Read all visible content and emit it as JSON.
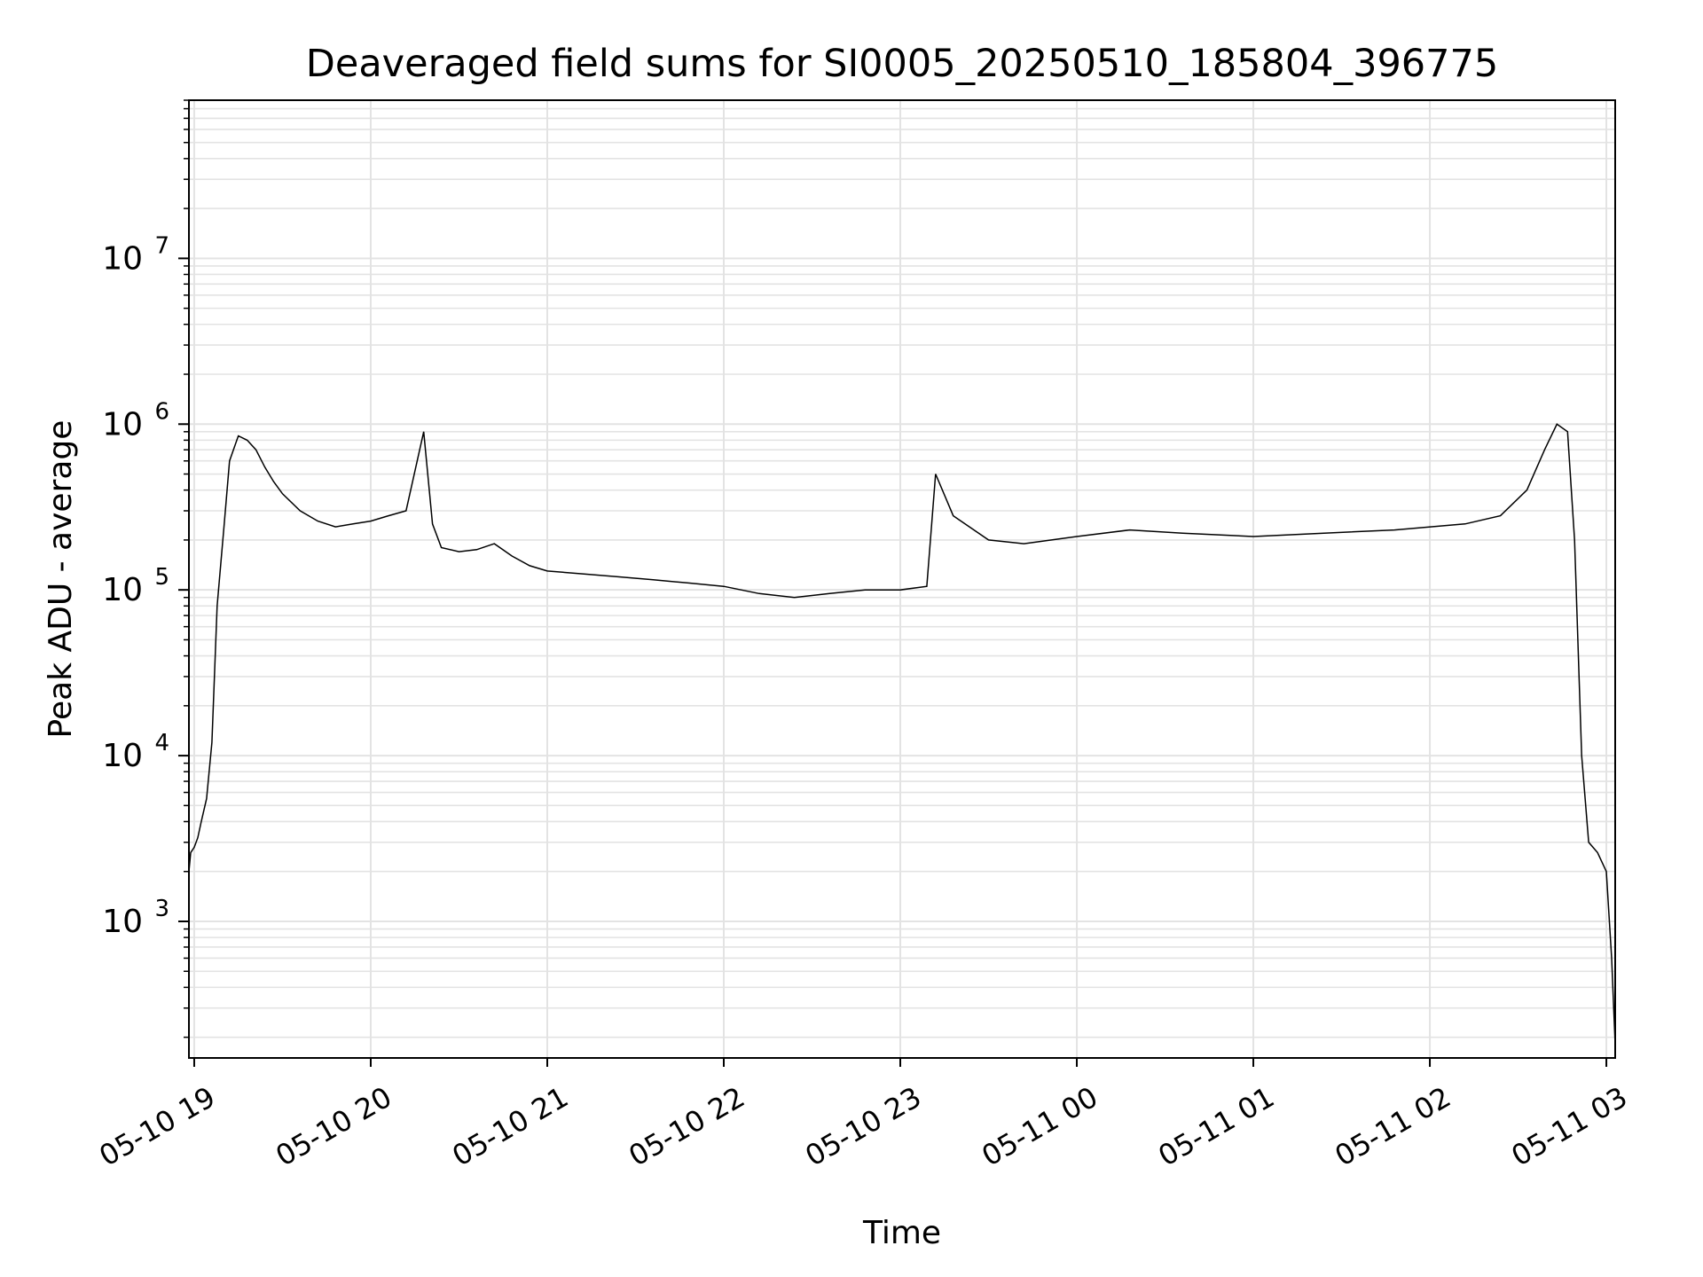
{
  "chart_data": {
    "type": "line",
    "title": "Deaveraged field sums for SI0005_20250510_185804_396775",
    "xlabel": "Time",
    "ylabel": "Peak ADU - average",
    "x_ticks": [
      "05-10 19",
      "05-10 20",
      "05-10 21",
      "05-10 22",
      "05-10 23",
      "05-11 00",
      "05-11 01",
      "05-11 02",
      "05-11 03"
    ],
    "y_ticks": [
      {
        "base": "10",
        "exp": "3",
        "value": 1000
      },
      {
        "base": "10",
        "exp": "4",
        "value": 10000
      },
      {
        "base": "10",
        "exp": "5",
        "value": 100000
      },
      {
        "base": "10",
        "exp": "6",
        "value": 1000000
      },
      {
        "base": "10",
        "exp": "7",
        "value": 10000000
      }
    ],
    "y_scale": "log",
    "ylim": [
      150,
      90000000
    ],
    "xlim_hours": [
      18.97,
      27.05
    ],
    "grid": true,
    "line_color": "#000000",
    "series": [
      {
        "values": [
          [
            18.97,
            2000
          ],
          [
            18.98,
            2600
          ],
          [
            19.0,
            2800
          ],
          [
            19.02,
            3200
          ],
          [
            19.04,
            4000
          ],
          [
            19.07,
            5500
          ],
          [
            19.1,
            12000
          ],
          [
            19.13,
            80000
          ],
          [
            19.17,
            250000
          ],
          [
            19.2,
            600000
          ],
          [
            19.25,
            850000
          ],
          [
            19.3,
            800000
          ],
          [
            19.35,
            700000
          ],
          [
            19.4,
            550000
          ],
          [
            19.45,
            450000
          ],
          [
            19.5,
            380000
          ],
          [
            19.6,
            300000
          ],
          [
            19.7,
            260000
          ],
          [
            19.8,
            240000
          ],
          [
            19.9,
            250000
          ],
          [
            20.0,
            260000
          ],
          [
            20.1,
            280000
          ],
          [
            20.2,
            300000
          ],
          [
            20.3,
            900000
          ],
          [
            20.35,
            250000
          ],
          [
            20.4,
            180000
          ],
          [
            20.5,
            170000
          ],
          [
            20.6,
            175000
          ],
          [
            20.7,
            190000
          ],
          [
            20.8,
            160000
          ],
          [
            20.9,
            140000
          ],
          [
            21.0,
            130000
          ],
          [
            21.2,
            125000
          ],
          [
            21.4,
            120000
          ],
          [
            21.6,
            115000
          ],
          [
            21.8,
            110000
          ],
          [
            22.0,
            105000
          ],
          [
            22.2,
            95000
          ],
          [
            22.4,
            90000
          ],
          [
            22.6,
            95000
          ],
          [
            22.8,
            100000
          ],
          [
            23.0,
            100000
          ],
          [
            23.15,
            105000
          ],
          [
            23.2,
            500000
          ],
          [
            23.3,
            280000
          ],
          [
            23.5,
            200000
          ],
          [
            23.7,
            190000
          ],
          [
            24.0,
            210000
          ],
          [
            24.3,
            230000
          ],
          [
            24.6,
            220000
          ],
          [
            25.0,
            210000
          ],
          [
            25.4,
            220000
          ],
          [
            25.8,
            230000
          ],
          [
            26.2,
            250000
          ],
          [
            26.4,
            280000
          ],
          [
            26.55,
            400000
          ],
          [
            26.65,
            700000
          ],
          [
            26.72,
            1000000
          ],
          [
            26.78,
            900000
          ],
          [
            26.82,
            200000
          ],
          [
            26.86,
            10000
          ],
          [
            26.9,
            3000
          ],
          [
            26.95,
            2600
          ],
          [
            27.0,
            2000
          ],
          [
            27.03,
            600
          ],
          [
            27.05,
            180
          ]
        ]
      }
    ]
  }
}
